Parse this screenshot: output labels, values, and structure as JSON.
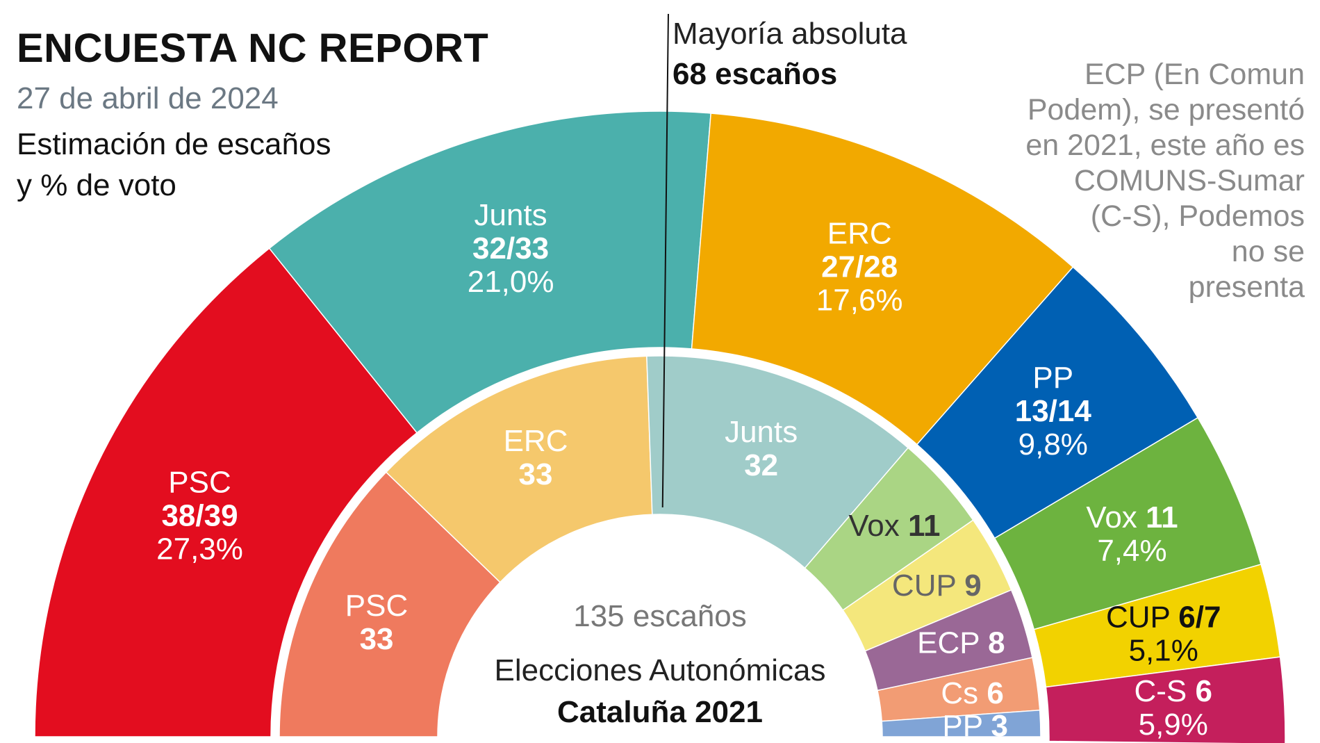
{
  "header": {
    "title": "ENCUESTA NC REPORT",
    "date": "27 de abril de 2024",
    "subtitle_line1": "Estimación de escaños",
    "subtitle_line2": "y % de voto"
  },
  "majority": {
    "label": "Mayoría absoluta",
    "value": "68 escaños",
    "seats": 68
  },
  "note": {
    "lines": [
      "ECP (En Comun",
      "Podem), se presentó",
      "en 2021, este año es",
      "COMUNS-Sumar",
      "(C-S), Podemos",
      "no se",
      "presenta"
    ]
  },
  "center": {
    "seats_label": "135 escaños",
    "election_line1": "Elecciones Autonómicas",
    "election_line2": "Cataluña 2021"
  },
  "chart_data": [
    {
      "type": "pie",
      "variant": "semicircle",
      "total_seats": 135,
      "series": [
        {
          "name": "PSC",
          "seats_label": "38/39",
          "seats": 38.5,
          "pct_label": "27,3%",
          "pct": 27.3,
          "color": "#e30d1f",
          "label_color": "#ffffff"
        },
        {
          "name": "Junts",
          "seats_label": "32/33",
          "seats": 32.5,
          "pct_label": "21,0%",
          "pct": 21.0,
          "color": "#4bb0ac",
          "label_color": "#ffffff"
        },
        {
          "name": "ERC",
          "seats_label": "27/28",
          "seats": 27.5,
          "pct_label": "17,6%",
          "pct": 17.6,
          "color": "#f2a900",
          "label_color": "#ffffff"
        },
        {
          "name": "PP",
          "seats_label": "13/14",
          "seats": 13.5,
          "pct_label": "9,8%",
          "pct": 9.8,
          "color": "#0060b3",
          "label_color": "#ffffff"
        },
        {
          "name": "Vox",
          "seats_label": "11",
          "seats": 11,
          "pct_label": "7,4%",
          "pct": 7.4,
          "color": "#6db33f",
          "label_color": "#ffffff"
        },
        {
          "name": "CUP",
          "seats_label": "6/7",
          "seats": 6.5,
          "pct_label": "5,1%",
          "pct": 5.1,
          "color": "#f2d200",
          "label_color": "#111111"
        },
        {
          "name": "C-S",
          "seats_label": "6",
          "seats": 6,
          "pct_label": "5,9%",
          "pct": 5.9,
          "color": "#c41f5c",
          "label_color": "#ffffff"
        }
      ]
    },
    {
      "type": "pie",
      "variant": "semicircle",
      "total_seats": 135,
      "series": [
        {
          "name": "PSC",
          "seats_label": "33",
          "seats": 33,
          "color": "#ef7a5e",
          "label_color": "#ffffff"
        },
        {
          "name": "ERC",
          "seats_label": "33",
          "seats": 33,
          "color": "#f5c86c",
          "label_color": "#ffffff"
        },
        {
          "name": "Junts",
          "seats_label": "32",
          "seats": 32,
          "color": "#a0ccc9",
          "label_color": "#ffffff"
        },
        {
          "name": "Vox",
          "seats_label": "11",
          "seats": 11,
          "color": "#aad584",
          "label_color": "#333333"
        },
        {
          "name": "CUP",
          "seats_label": "9",
          "seats": 9,
          "color": "#f4e77c",
          "label_color": "#666666"
        },
        {
          "name": "ECP",
          "seats_label": "8",
          "seats": 8,
          "color": "#9a6896",
          "label_color": "#ffffff"
        },
        {
          "name": "Cs",
          "seats_label": "6",
          "seats": 6,
          "color": "#f29c74",
          "label_color": "#ffffff"
        },
        {
          "name": "PP",
          "seats_label": "3",
          "seats": 3,
          "color": "#80a4d6",
          "label_color": "#ffffff"
        }
      ]
    }
  ]
}
